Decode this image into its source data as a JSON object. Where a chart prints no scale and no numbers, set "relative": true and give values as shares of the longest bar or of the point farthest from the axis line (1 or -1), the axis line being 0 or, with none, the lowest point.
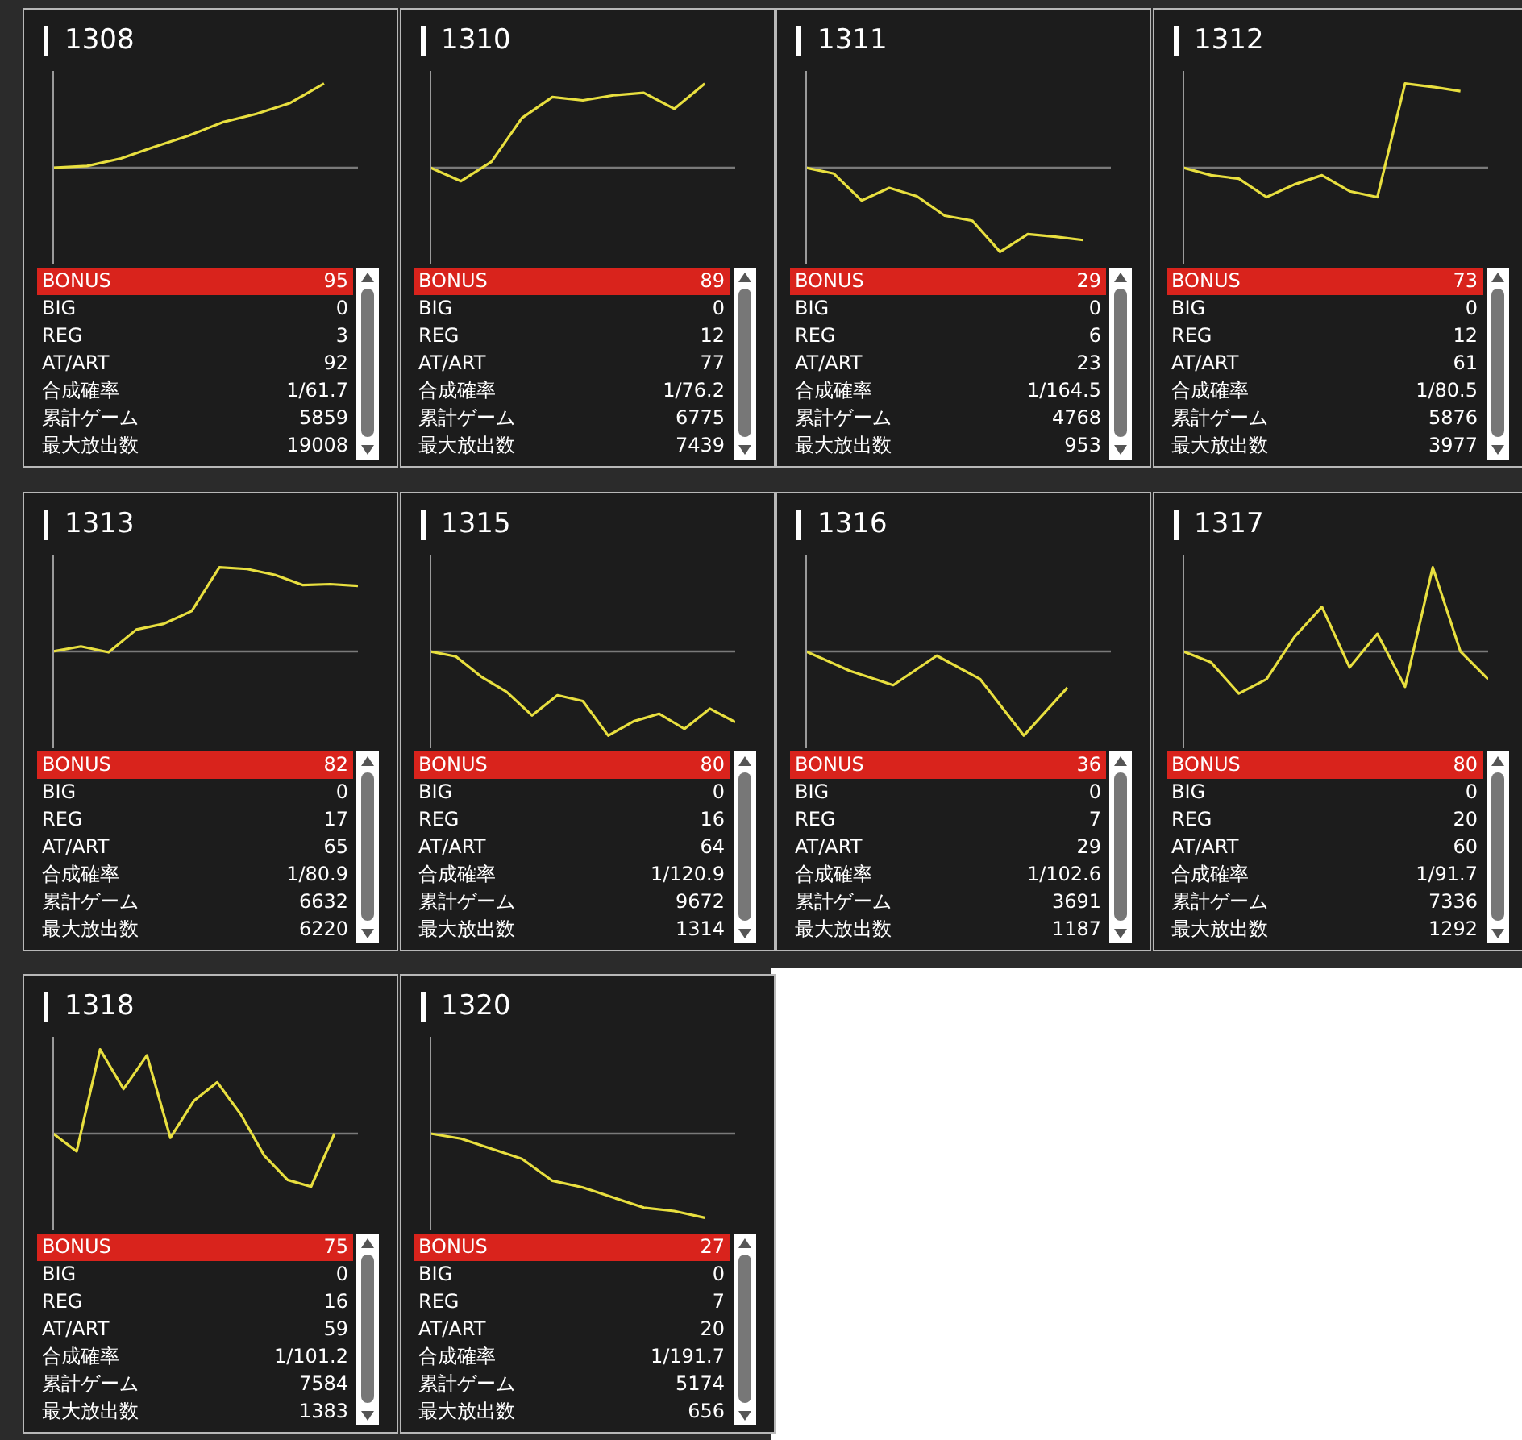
{
  "chart_data": [
    {
      "type": "line",
      "title": "1308",
      "relative": true,
      "color": "#e8df3f",
      "categories": [
        null,
        null,
        null,
        null,
        null,
        null,
        null,
        null,
        null,
        null
      ],
      "values": [
        0,
        0.02,
        0.11,
        0.25,
        0.38,
        0.54,
        0.64,
        0.77,
        1,
        null
      ],
      "annotations": [
        "BONUS",
        "95",
        "BIG",
        "0",
        "REG",
        "3",
        "AT/ART",
        "92",
        "合成確率",
        "1/61.7",
        "累計ゲーム",
        "5859",
        "最大放出数",
        "19008"
      ]
    },
    {
      "type": "line",
      "title": "1310",
      "relative": true,
      "color": "#e8df3f",
      "categories": [
        null,
        null,
        null,
        null,
        null,
        null,
        null,
        null,
        null,
        null,
        null
      ],
      "values": [
        0,
        -0.16,
        0.07,
        0.59,
        0.84,
        0.8,
        0.86,
        0.89,
        0.7,
        1,
        null
      ],
      "annotations": [
        "BONUS",
        "89",
        "BIG",
        "0",
        "REG",
        "12",
        "AT/ART",
        "77",
        "合成確率",
        "1/76.2",
        "累計ゲーム",
        "6775",
        "最大放出数",
        "7439"
      ]
    },
    {
      "type": "line",
      "title": "1311",
      "relative": true,
      "color": "#e8df3f",
      "categories": [
        null,
        null,
        null,
        null,
        null,
        null,
        null,
        null,
        null,
        null,
        null,
        null
      ],
      "values": [
        0,
        -0.07,
        -0.39,
        -0.24,
        -0.34,
        -0.57,
        -0.63,
        -1,
        -0.79,
        -0.82,
        -0.86,
        null
      ],
      "annotations": [
        "BONUS",
        "29",
        "BIG",
        "0",
        "REG",
        "6",
        "AT/ART",
        "23",
        "合成確率",
        "1/164.5",
        "累計ゲーム",
        "4768",
        "最大放出数",
        "953"
      ]
    },
    {
      "type": "line",
      "title": "1312",
      "relative": true,
      "color": "#e8df3f",
      "categories": [
        null,
        null,
        null,
        null,
        null,
        null,
        null,
        null,
        null,
        null,
        null,
        null
      ],
      "values": [
        0,
        -0.09,
        -0.13,
        -0.35,
        -0.2,
        -0.09,
        -0.28,
        -0.35,
        1,
        0.96,
        0.91,
        null
      ],
      "annotations": [
        "BONUS",
        "73",
        "BIG",
        "0",
        "REG",
        "12",
        "AT/ART",
        "61",
        "合成確率",
        "1/80.5",
        "累計ゲーム",
        "5876",
        "最大放出数",
        "3977"
      ]
    },
    {
      "type": "line",
      "title": "1313",
      "relative": true,
      "color": "#e8df3f",
      "categories": [
        null,
        null,
        null,
        null,
        null,
        null,
        null,
        null,
        null,
        null,
        null,
        null
      ],
      "values": [
        0,
        0.06,
        -0.01,
        0.26,
        0.33,
        0.48,
        1,
        0.98,
        0.91,
        0.79,
        0.8,
        0.78
      ],
      "annotations": [
        "BONUS",
        "82",
        "BIG",
        "0",
        "REG",
        "17",
        "AT/ART",
        "65",
        "合成確率",
        "1/80.9",
        "累計ゲーム",
        "6632",
        "最大放出数",
        "6220"
      ]
    },
    {
      "type": "line",
      "title": "1315",
      "relative": true,
      "color": "#e8df3f",
      "categories": [
        null,
        null,
        null,
        null,
        null,
        null,
        null,
        null,
        null,
        null,
        null,
        null,
        null
      ],
      "values": [
        0,
        -0.06,
        -0.3,
        -0.48,
        -0.76,
        -0.52,
        -0.59,
        -1,
        -0.83,
        -0.74,
        -0.92,
        -0.68,
        -0.84
      ],
      "annotations": [
        "BONUS",
        "80",
        "BIG",
        "0",
        "REG",
        "16",
        "AT/ART",
        "64",
        "合成確率",
        "1/120.9",
        "累計ゲーム",
        "9672",
        "最大放出数",
        "1314"
      ]
    },
    {
      "type": "line",
      "title": "1316",
      "relative": true,
      "color": "#e8df3f",
      "categories": [
        null,
        null,
        null,
        null,
        null,
        null,
        null,
        null
      ],
      "values": [
        0,
        -0.23,
        -0.4,
        -0.05,
        -0.33,
        -1,
        -0.43,
        null
      ],
      "annotations": [
        "BONUS",
        "36",
        "BIG",
        "0",
        "REG",
        "7",
        "AT/ART",
        "29",
        "合成確率",
        "1/102.6",
        "累計ゲーム",
        "3691",
        "最大放出数",
        "1187"
      ]
    },
    {
      "type": "line",
      "title": "1317",
      "relative": true,
      "color": "#e8df3f",
      "categories": [
        null,
        null,
        null,
        null,
        null,
        null,
        null,
        null,
        null,
        null,
        null,
        null
      ],
      "values": [
        0,
        -0.13,
        -0.5,
        -0.33,
        0.17,
        0.53,
        -0.19,
        0.21,
        -0.42,
        1,
        0,
        -0.33
      ],
      "annotations": [
        "BONUS",
        "80",
        "BIG",
        "0",
        "REG",
        "20",
        "AT/ART",
        "60",
        "合成確率",
        "1/91.7",
        "累計ゲーム",
        "7336",
        "最大放出数",
        "1292"
      ]
    },
    {
      "type": "line",
      "title": "1318",
      "relative": true,
      "color": "#e8df3f",
      "categories": [
        null,
        null,
        null,
        null,
        null,
        null,
        null,
        null,
        null,
        null,
        null,
        null,
        null,
        null
      ],
      "values": [
        0,
        -0.21,
        1,
        0.53,
        0.93,
        -0.05,
        0.39,
        0.61,
        0.23,
        -0.26,
        -0.55,
        -0.63,
        0,
        null
      ],
      "annotations": [
        "BONUS",
        "75",
        "BIG",
        "0",
        "REG",
        "16",
        "AT/ART",
        "59",
        "合成確率",
        "1/101.2",
        "累計ゲーム",
        "7584",
        "最大放出数",
        "1383"
      ]
    },
    {
      "type": "line",
      "title": "1320",
      "relative": true,
      "color": "#e8df3f",
      "categories": [
        null,
        null,
        null,
        null,
        null,
        null,
        null,
        null,
        null,
        null,
        null
      ],
      "values": [
        0,
        -0.06,
        -0.18,
        -0.3,
        -0.56,
        -0.64,
        -0.76,
        -0.88,
        -0.92,
        -1,
        null
      ],
      "annotations": [
        "BONUS",
        "27",
        "BIG",
        "0",
        "REG",
        "7",
        "AT/ART",
        "20",
        "合成確率",
        "1/191.7",
        "累計ゲーム",
        "5174",
        "最大放出数",
        "656"
      ]
    }
  ]
}
